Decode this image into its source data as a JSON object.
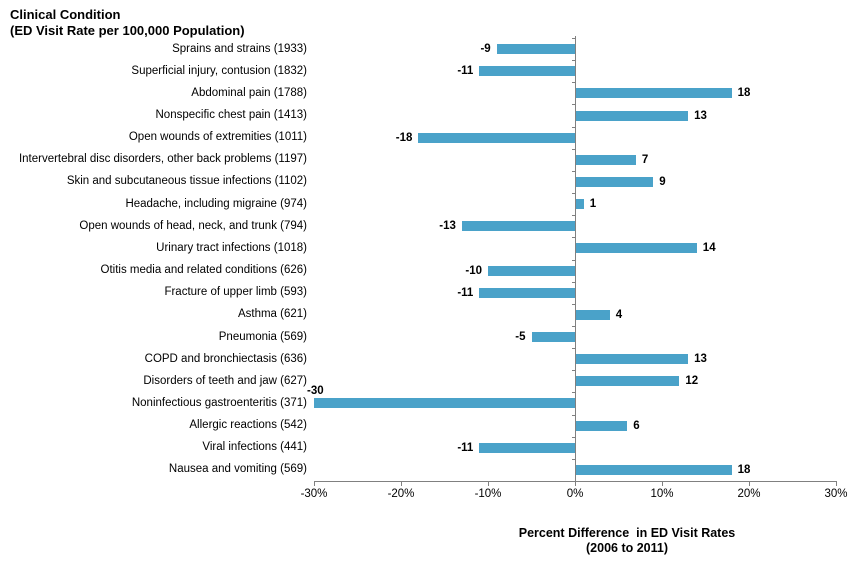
{
  "title": {
    "line1": "Clinical Condition",
    "line2": "(ED Visit Rate per 100,000 Population)"
  },
  "chart_data": {
    "type": "bar",
    "orientation": "horizontal",
    "title": "Clinical Condition (ED Visit Rate per 100,000 Population)",
    "categories": [
      "Sprains and strains (1933)",
      "Superficial injury, contusion (1832)",
      "Abdominal pain (1788)",
      "Nonspecific chest pain (1413)",
      "Open wounds of extremities (1011)",
      "Intervertebral disc disorders, other back problems (1197)",
      "Skin and subcutaneous tissue infections (1102)",
      "Headache, including migraine (974)",
      "Open wounds of head, neck, and trunk (794)",
      "Urinary tract infections (1018)",
      "Otitis media and related conditions (626)",
      "Fracture of upper limb (593)",
      "Asthma (621)",
      "Pneumonia (569)",
      "COPD and bronchiectasis (636)",
      "Disorders of teeth and jaw (627)",
      "Noninfectious gastroenteritis (371)",
      "Allergic reactions (542)",
      "Viral infections (441)",
      "Nausea and vomiting (569)"
    ],
    "values": [
      -9,
      -11,
      18,
      13,
      -18,
      7,
      9,
      1,
      -13,
      14,
      -10,
      -11,
      4,
      -5,
      13,
      12,
      -30,
      6,
      -11,
      18
    ],
    "ed_visit_rates": [
      1933,
      1832,
      1788,
      1413,
      1011,
      1197,
      1102,
      974,
      794,
      1018,
      626,
      593,
      621,
      569,
      636,
      627,
      371,
      542,
      441,
      569
    ],
    "xlabel_line1": "Percent Difference  in ED Visit Rates",
    "xlabel_line2": "(2006 to 2011)",
    "xlim": [
      -30,
      30
    ],
    "xticks": [
      "-30%",
      "-20%",
      "-10%",
      "0%",
      "10%",
      "20%",
      "30%"
    ],
    "xtick_values": [
      -30,
      -20,
      -10,
      0,
      10,
      20,
      30
    ],
    "grid": false,
    "legend": false,
    "bar_color": "#4AA2C9",
    "axis_color": "#808080",
    "text_color": "#000000"
  }
}
